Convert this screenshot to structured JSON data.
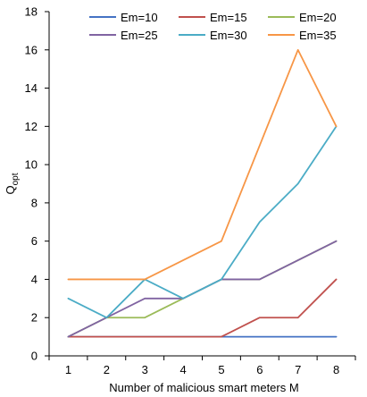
{
  "chart_data": {
    "type": "line",
    "title": "",
    "xlabel": "Number of malicious smart meters M",
    "ylabel": "Q",
    "ylabel_subscript": "opt",
    "x": [
      1,
      2,
      3,
      4,
      5,
      6,
      7,
      8
    ],
    "xlim": [
      0.5,
      8.5
    ],
    "ylim": [
      0,
      18
    ],
    "yticks": [
      0,
      2,
      4,
      6,
      8,
      10,
      12,
      14,
      16,
      18
    ],
    "grid": false,
    "legend_position": "top",
    "series": [
      {
        "name": "Em=10",
        "color": "#4472C4",
        "values": [
          1,
          1,
          1,
          1,
          1,
          1,
          1,
          1
        ]
      },
      {
        "name": "Em=15",
        "color": "#C0504D",
        "values": [
          1,
          1,
          1,
          1,
          1,
          2,
          2,
          4
        ]
      },
      {
        "name": "Em=20",
        "color": "#9BBB59",
        "values": [
          1,
          2,
          2,
          3,
          4,
          4,
          5,
          6
        ]
      },
      {
        "name": "Em=25",
        "color": "#8064A2",
        "values": [
          1,
          2,
          3,
          3,
          4,
          4,
          5,
          6
        ]
      },
      {
        "name": "Em=30",
        "color": "#4BACC6",
        "values": [
          3,
          2,
          4,
          3,
          4,
          7,
          9,
          12
        ]
      },
      {
        "name": "Em=35",
        "color": "#F79646",
        "values": [
          4,
          4,
          4,
          5,
          6,
          11,
          16,
          12
        ]
      }
    ]
  }
}
